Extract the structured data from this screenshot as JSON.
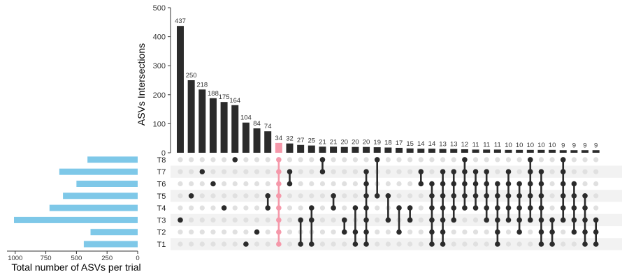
{
  "chart_data": {
    "type": "upset",
    "sets": [
      "T1",
      "T2",
      "T3",
      "T4",
      "T5",
      "T6",
      "T7",
      "T8"
    ],
    "set_sizes": [
      440,
      385,
      1010,
      720,
      610,
      500,
      640,
      410
    ],
    "set_size_axis": {
      "label": "Total number of ASVs per trial",
      "range": [
        0,
        1050
      ],
      "ticks": [
        1000,
        750,
        500,
        250,
        0
      ],
      "reversed": true
    },
    "intersection_axis": {
      "label": "ASVs Intersections",
      "range": [
        0,
        500
      ],
      "ticks": [
        0,
        100,
        200,
        300,
        400,
        500
      ]
    },
    "intersections": [
      {
        "value": 437,
        "sets": [
          "T3"
        ]
      },
      {
        "value": 250,
        "sets": [
          "T5"
        ]
      },
      {
        "value": 218,
        "sets": [
          "T7"
        ]
      },
      {
        "value": 188,
        "sets": [
          "T6"
        ]
      },
      {
        "value": 175,
        "sets": [
          "T4"
        ]
      },
      {
        "value": 164,
        "sets": [
          "T8"
        ]
      },
      {
        "value": 104,
        "sets": [
          "T1"
        ]
      },
      {
        "value": 84,
        "sets": [
          "T2"
        ]
      },
      {
        "value": 74,
        "sets": [
          "T4",
          "T5"
        ]
      },
      {
        "value": 34,
        "sets": [
          "T1",
          "T2",
          "T3",
          "T4",
          "T5",
          "T6",
          "T7",
          "T8"
        ],
        "highlight": true
      },
      {
        "value": 32,
        "sets": [
          "T6",
          "T7"
        ]
      },
      {
        "value": 27,
        "sets": [
          "T1",
          "T3"
        ]
      },
      {
        "value": 25,
        "sets": [
          "T1",
          "T3",
          "T4"
        ]
      },
      {
        "value": 21,
        "sets": [
          "T7",
          "T8"
        ]
      },
      {
        "value": 21,
        "sets": [
          "T4",
          "T5"
        ]
      },
      {
        "value": 20,
        "sets": [
          "T2",
          "T3"
        ]
      },
      {
        "value": 20,
        "sets": [
          "T1",
          "T2",
          "T4"
        ]
      },
      {
        "value": 20,
        "sets": [
          "T1",
          "T2",
          "T3",
          "T4",
          "T5",
          "T6",
          "T7"
        ]
      },
      {
        "value": 19,
        "sets": [
          "T5",
          "T8"
        ]
      },
      {
        "value": 18,
        "sets": [
          "T3",
          "T5"
        ]
      },
      {
        "value": 17,
        "sets": [
          "T2",
          "T4"
        ]
      },
      {
        "value": 15,
        "sets": [
          "T3",
          "T4"
        ]
      },
      {
        "value": 14,
        "sets": [
          "T6",
          "T7"
        ]
      },
      {
        "value": 14,
        "sets": [
          "T1",
          "T2",
          "T3",
          "T4",
          "T5",
          "T6"
        ]
      },
      {
        "value": 13,
        "sets": [
          "T1",
          "T2",
          "T3",
          "T4",
          "T5",
          "T6",
          "T7"
        ]
      },
      {
        "value": 13,
        "sets": [
          "T3",
          "T4",
          "T5",
          "T6",
          "T7"
        ]
      },
      {
        "value": 12,
        "sets": [
          "T4",
          "T5",
          "T6",
          "T7",
          "T8"
        ]
      },
      {
        "value": 11,
        "sets": [
          "T4",
          "T5",
          "T6",
          "T7"
        ]
      },
      {
        "value": 11,
        "sets": [
          "T3",
          "T4",
          "T5",
          "T6",
          "T7"
        ]
      },
      {
        "value": 11,
        "sets": [
          "T1",
          "T2",
          "T3",
          "T4",
          "T5",
          "T6"
        ]
      },
      {
        "value": 10,
        "sets": [
          "T3",
          "T4",
          "T5",
          "T6",
          "T7"
        ]
      },
      {
        "value": 10,
        "sets": [
          "T2",
          "T3",
          "T4",
          "T5",
          "T6"
        ]
      },
      {
        "value": 10,
        "sets": [
          "T3",
          "T4",
          "T5",
          "T6",
          "T7",
          "T8"
        ]
      },
      {
        "value": 10,
        "sets": [
          "T1",
          "T2",
          "T3",
          "T4",
          "T5",
          "T6",
          "T7"
        ]
      },
      {
        "value": 10,
        "sets": [
          "T1",
          "T2",
          "T3"
        ]
      },
      {
        "value": 9,
        "sets": [
          "T3",
          "T4",
          "T5",
          "T6",
          "T7",
          "T8"
        ]
      },
      {
        "value": 9,
        "sets": [
          "T2",
          "T3",
          "T4",
          "T5",
          "T6"
        ]
      },
      {
        "value": 9,
        "sets": [
          "T1",
          "T2",
          "T3",
          "T4",
          "T5"
        ]
      },
      {
        "value": 9,
        "sets": [
          "T1",
          "T2",
          "T3"
        ]
      }
    ],
    "colors": {
      "bar": "#2b2b2b",
      "highlight": "#f598aa",
      "set_bar": "#7ec8e8",
      "dot_off": "#e0e0e0",
      "stripe": "#f2f2f2"
    }
  }
}
